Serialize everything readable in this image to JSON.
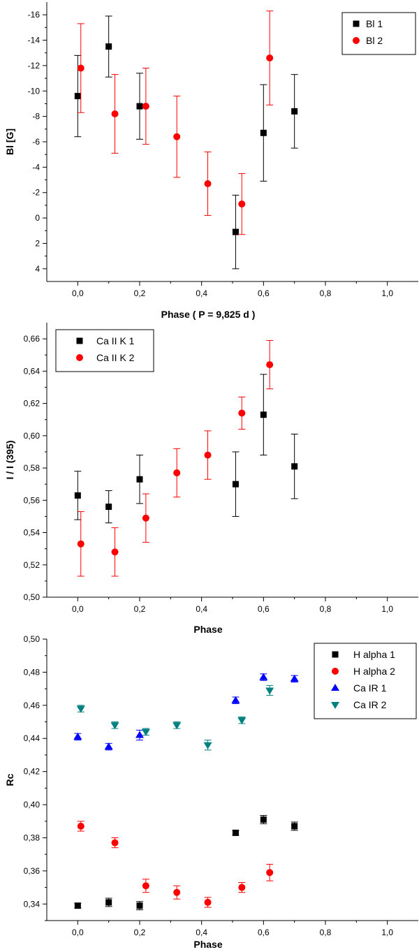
{
  "chart_data": [
    {
      "id": "bl",
      "type": "scatter",
      "xlabel": "Phase ( P = 9,825 d )",
      "ylabel": "Bl [G]",
      "xlim": [
        -0.1,
        1.1
      ],
      "ylim": [
        -17,
        5
      ],
      "y_inverted": true,
      "xticks": [
        0.0,
        0.2,
        0.4,
        0.6,
        0.8,
        1.0
      ],
      "xtick_labels": [
        "0,0",
        "0,2",
        "0,4",
        "0,6",
        "0,8",
        "1,0"
      ],
      "yticks": [
        -16,
        -14,
        -12,
        -10,
        -8,
        -6,
        -4,
        -2,
        0,
        2,
        4
      ],
      "ytick_labels": [
        "-16",
        "-14",
        "-12",
        "-10",
        "-8",
        "-6",
        "-4",
        "-2",
        "0",
        "2",
        "4"
      ],
      "legend_position": "top-right",
      "series": [
        {
          "name": "Bl 1",
          "marker": "square",
          "color": "#000000",
          "points": [
            {
              "x": 0.0,
              "y": -9.6,
              "err": 3.2
            },
            {
              "x": 0.1,
              "y": -13.5,
              "err": 2.4
            },
            {
              "x": 0.2,
              "y": -8.8,
              "err": 2.6
            },
            {
              "x": 0.51,
              "y": 1.1,
              "err": 2.9
            },
            {
              "x": 0.6,
              "y": -6.7,
              "err": 3.8
            },
            {
              "x": 0.7,
              "y": -8.4,
              "err": 2.9
            }
          ]
        },
        {
          "name": "Bl 2",
          "marker": "circle",
          "color": "#ff0000",
          "points": [
            {
              "x": 0.01,
              "y": -11.8,
              "err": 3.5
            },
            {
              "x": 0.12,
              "y": -8.2,
              "err": 3.1
            },
            {
              "x": 0.22,
              "y": -8.8,
              "err": 3.0
            },
            {
              "x": 0.32,
              "y": -6.4,
              "err": 3.2
            },
            {
              "x": 0.42,
              "y": -2.7,
              "err": 2.5
            },
            {
              "x": 0.53,
              "y": -1.1,
              "err": 2.4
            },
            {
              "x": 0.62,
              "y": -12.6,
              "err": 3.7
            }
          ]
        }
      ]
    },
    {
      "id": "ca",
      "type": "scatter",
      "xlabel": "Phase",
      "ylabel": "I / I (395)",
      "xlim": [
        -0.1,
        1.1
      ],
      "ylim": [
        0.5,
        0.67
      ],
      "y_inverted": false,
      "xticks": [
        0.0,
        0.2,
        0.4,
        0.6,
        0.8,
        1.0
      ],
      "xtick_labels": [
        "0,0",
        "0,2",
        "0,4",
        "0,6",
        "0,8",
        "1,0"
      ],
      "yticks": [
        0.5,
        0.52,
        0.54,
        0.56,
        0.58,
        0.6,
        0.62,
        0.64,
        0.66
      ],
      "ytick_labels": [
        "0,50",
        "0,52",
        "0,54",
        "0,56",
        "0,58",
        "0,60",
        "0,62",
        "0,64",
        "0,66"
      ],
      "legend_position": "top-left",
      "series": [
        {
          "name": "Ca II K 1",
          "marker": "square",
          "color": "#000000",
          "points": [
            {
              "x": 0.0,
              "y": 0.563,
              "err": 0.015
            },
            {
              "x": 0.1,
              "y": 0.556,
              "err": 0.01
            },
            {
              "x": 0.2,
              "y": 0.573,
              "err": 0.015
            },
            {
              "x": 0.51,
              "y": 0.57,
              "err": 0.02
            },
            {
              "x": 0.6,
              "y": 0.613,
              "err": 0.025
            },
            {
              "x": 0.7,
              "y": 0.581,
              "err": 0.02
            }
          ]
        },
        {
          "name": "Ca II K 2",
          "marker": "circle",
          "color": "#ff0000",
          "points": [
            {
              "x": 0.01,
              "y": 0.533,
              "err": 0.02
            },
            {
              "x": 0.12,
              "y": 0.528,
              "err": 0.015
            },
            {
              "x": 0.22,
              "y": 0.549,
              "err": 0.015
            },
            {
              "x": 0.32,
              "y": 0.577,
              "err": 0.015
            },
            {
              "x": 0.42,
              "y": 0.588,
              "err": 0.015
            },
            {
              "x": 0.53,
              "y": 0.614,
              "err": 0.01
            },
            {
              "x": 0.62,
              "y": 0.644,
              "err": 0.015
            }
          ]
        }
      ]
    },
    {
      "id": "rc",
      "type": "scatter",
      "xlabel": "Phase",
      "ylabel": "Rc",
      "xlim": [
        -0.1,
        1.1
      ],
      "ylim": [
        0.33,
        0.5
      ],
      "y_inverted": false,
      "xticks": [
        0.0,
        0.2,
        0.4,
        0.6,
        0.8,
        1.0
      ],
      "xtick_labels": [
        "0,0",
        "0,2",
        "0,4",
        "0,6",
        "0,8",
        "1,0"
      ],
      "yticks": [
        0.34,
        0.36,
        0.38,
        0.4,
        0.42,
        0.44,
        0.46,
        0.48,
        0.5
      ],
      "ytick_labels": [
        "0,34",
        "0,36",
        "0,38",
        "0,40",
        "0,42",
        "0,44",
        "0,46",
        "0,48",
        "0,50"
      ],
      "legend_position": "top-right",
      "series": [
        {
          "name": "H alpha 1",
          "marker": "square",
          "color": "#000000",
          "points": [
            {
              "x": 0.0,
              "y": 0.339,
              "err": 0.0015
            },
            {
              "x": 0.1,
              "y": 0.341,
              "err": 0.0025
            },
            {
              "x": 0.2,
              "y": 0.339,
              "err": 0.0025
            },
            {
              "x": 0.51,
              "y": 0.383,
              "err": 0.0015
            },
            {
              "x": 0.6,
              "y": 0.391,
              "err": 0.0025
            },
            {
              "x": 0.7,
              "y": 0.387,
              "err": 0.0025
            }
          ]
        },
        {
          "name": "H alpha 2",
          "marker": "circle",
          "color": "#ff0000",
          "points": [
            {
              "x": 0.01,
              "y": 0.387,
              "err": 0.003
            },
            {
              "x": 0.12,
              "y": 0.377,
              "err": 0.003
            },
            {
              "x": 0.22,
              "y": 0.351,
              "err": 0.004
            },
            {
              "x": 0.32,
              "y": 0.347,
              "err": 0.004
            },
            {
              "x": 0.42,
              "y": 0.341,
              "err": 0.003
            },
            {
              "x": 0.53,
              "y": 0.35,
              "err": 0.003
            },
            {
              "x": 0.62,
              "y": 0.359,
              "err": 0.005
            }
          ]
        },
        {
          "name": "Ca IR 1",
          "marker": "triangle-up",
          "color": "#0000ff",
          "points": [
            {
              "x": 0.0,
              "y": 0.441,
              "err": 0.002
            },
            {
              "x": 0.1,
              "y": 0.435,
              "err": 0.002
            },
            {
              "x": 0.2,
              "y": 0.442,
              "err": 0.003
            },
            {
              "x": 0.51,
              "y": 0.463,
              "err": 0.002
            },
            {
              "x": 0.6,
              "y": 0.477,
              "err": 0.002
            },
            {
              "x": 0.7,
              "y": 0.476,
              "err": 0.002
            }
          ]
        },
        {
          "name": "Ca IR 2",
          "marker": "triangle-down",
          "color": "#008080",
          "points": [
            {
              "x": 0.01,
              "y": 0.458,
              "err": 0.002
            },
            {
              "x": 0.12,
              "y": 0.448,
              "err": 0.002
            },
            {
              "x": 0.22,
              "y": 0.444,
              "err": 0.002
            },
            {
              "x": 0.32,
              "y": 0.448,
              "err": 0.002
            },
            {
              "x": 0.42,
              "y": 0.436,
              "err": 0.003
            },
            {
              "x": 0.53,
              "y": 0.451,
              "err": 0.002
            },
            {
              "x": 0.62,
              "y": 0.469,
              "err": 0.003
            }
          ]
        }
      ]
    }
  ]
}
